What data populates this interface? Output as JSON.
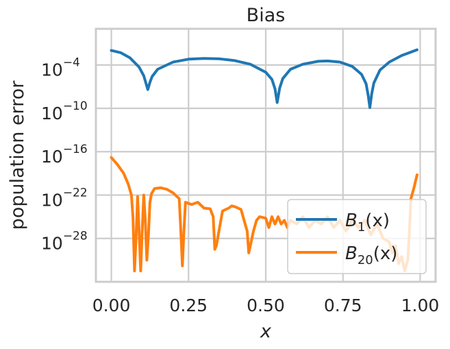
{
  "chart_data": {
    "type": "line",
    "title": "Bias",
    "xlabel": "x",
    "ylabel": "population error",
    "xscale": "linear",
    "yscale": "log",
    "xlim": [
      -0.05,
      1.05
    ],
    "ylim_log10": [
      -34,
      1
    ],
    "grid": true,
    "legend_position": "lower right",
    "xticks": [
      0.0,
      0.25,
      0.5,
      0.75,
      1.0
    ],
    "xtick_labels": [
      "0.00",
      "0.25",
      "0.50",
      "0.75",
      "1.00"
    ],
    "yticks_log10": [
      -4,
      -10,
      -16,
      -22,
      -28
    ],
    "ytick_labels": [
      {
        "base": "10",
        "exp": "−4"
      },
      {
        "base": "10",
        "exp": "−10"
      },
      {
        "base": "10",
        "exp": "−16"
      },
      {
        "base": "10",
        "exp": "−22"
      },
      {
        "base": "10",
        "exp": "−28"
      }
    ],
    "series": [
      {
        "name": "B1(x)",
        "legend_main": "B",
        "legend_sub": "1",
        "legend_suffix": "(x)",
        "color": "#1f77b4",
        "x": [
          0.0,
          0.03,
          0.06,
          0.09,
          0.105,
          0.112,
          0.118,
          0.125,
          0.132,
          0.15,
          0.2,
          0.25,
          0.3,
          0.35,
          0.4,
          0.45,
          0.5,
          0.52,
          0.53,
          0.537,
          0.545,
          0.555,
          0.58,
          0.62,
          0.67,
          0.7,
          0.74,
          0.78,
          0.81,
          0.825,
          0.832,
          0.837,
          0.843,
          0.85,
          0.87,
          0.9,
          0.94,
          0.99
        ],
        "y_log10": [
          -2.0,
          -2.3,
          -3.0,
          -4.3,
          -5.5,
          -6.5,
          -7.4,
          -6.4,
          -5.6,
          -4.6,
          -3.6,
          -3.2,
          -3.1,
          -3.15,
          -3.4,
          -3.9,
          -5.0,
          -6.0,
          -7.3,
          -9.2,
          -7.2,
          -5.9,
          -4.6,
          -3.9,
          -3.5,
          -3.45,
          -3.6,
          -4.2,
          -5.3,
          -6.6,
          -8.3,
          -9.9,
          -8.0,
          -6.5,
          -4.7,
          -3.6,
          -2.7,
          -1.9
        ]
      },
      {
        "name": "B20(x)",
        "legend_main": "B",
        "legend_sub": "20",
        "legend_suffix": "(x)",
        "color": "#ff7f0e",
        "x": [
          0.0,
          0.02,
          0.04,
          0.055,
          0.065,
          0.07,
          0.075,
          0.08,
          0.085,
          0.09,
          0.095,
          0.1,
          0.105,
          0.11,
          0.115,
          0.12,
          0.125,
          0.13,
          0.14,
          0.16,
          0.18,
          0.2,
          0.22,
          0.225,
          0.23,
          0.235,
          0.24,
          0.26,
          0.28,
          0.3,
          0.32,
          0.33,
          0.335,
          0.34,
          0.36,
          0.38,
          0.39,
          0.4,
          0.42,
          0.44,
          0.445,
          0.45,
          0.46,
          0.47,
          0.48,
          0.5,
          0.51,
          0.52,
          0.53,
          0.54,
          0.55,
          0.56,
          0.57,
          0.58,
          0.6,
          0.62,
          0.64,
          0.66,
          0.68,
          0.7,
          0.72,
          0.74,
          0.76,
          0.78,
          0.8,
          0.82,
          0.84,
          0.86,
          0.88,
          0.9,
          0.91,
          0.92,
          0.93,
          0.94,
          0.95,
          0.96,
          0.965,
          0.97,
          0.98,
          0.99
        ],
        "y_log10": [
          -16.8,
          -17.8,
          -19.0,
          -20.5,
          -22.0,
          -25.0,
          -32.5,
          -28.0,
          -22.2,
          -27.0,
          -32.5,
          -27.0,
          -22.0,
          -25.5,
          -31.0,
          -27.5,
          -23.0,
          -21.8,
          -21.1,
          -21.0,
          -21.2,
          -21.7,
          -22.5,
          -27.0,
          -31.8,
          -27.0,
          -23.0,
          -23.3,
          -23.0,
          -23.8,
          -23.9,
          -25.0,
          -29.5,
          -29.0,
          -24.2,
          -23.8,
          -23.5,
          -23.6,
          -24.0,
          -27.0,
          -30.0,
          -29.0,
          -27.0,
          -25.5,
          -25.0,
          -25.2,
          -26.5,
          -25.0,
          -26.0,
          -25.0,
          -26.0,
          -25.5,
          -26.5,
          -25.5,
          -26.0,
          -25.0,
          -26.5,
          -25.5,
          -26.0,
          -25.0,
          -26.5,
          -25.5,
          -27.0,
          -25.5,
          -26.5,
          -25.5,
          -27.5,
          -26.0,
          -28.0,
          -28.5,
          -30.0,
          -29.0,
          -31.5,
          -30.5,
          -32.5,
          -31.0,
          -27.0,
          -22.5,
          -21.0,
          -19.2
        ]
      }
    ]
  }
}
